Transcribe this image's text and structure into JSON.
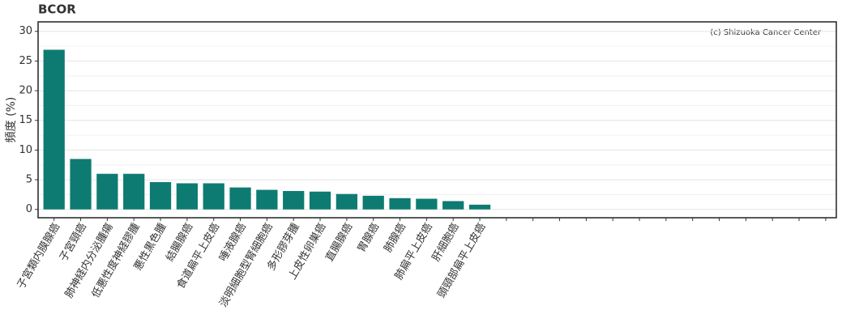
{
  "chart_data": {
    "type": "bar",
    "title": "BCOR",
    "y_label": "頻度 (%)",
    "annotation": "(c) Shizuoka Cancer Center",
    "categories": [
      "子宮類内膜腺癌",
      "子宮頸癌",
      "肺神経内分泌腫瘍",
      "低悪性度神経膠腫",
      "悪性黒色腫",
      "結腸腺癌",
      "食道扁平上皮癌",
      "唾液腺癌",
      "淡明細胞型腎細胞癌",
      "多形膠芽腫",
      "上皮性卵巣癌",
      "直腸腺癌",
      "胃腺癌",
      "肺腺癌",
      "肺扁平上皮癌",
      "肝細胞癌",
      "頭頸部扁平上皮癌",
      null,
      null,
      null,
      null,
      null,
      null,
      null,
      null,
      null,
      null,
      null,
      null,
      null
    ],
    "values": [
      26.9,
      8.5,
      6.0,
      6.0,
      4.6,
      4.4,
      4.4,
      3.7,
      3.3,
      3.1,
      3.0,
      2.6,
      2.3,
      1.9,
      1.8,
      1.4,
      0.8,
      null,
      null,
      null,
      null,
      null,
      null,
      null,
      null,
      null,
      null,
      null,
      null,
      null
    ],
    "color": "#0e7b72",
    "ylim": [
      -1.4,
      31.6
    ],
    "yticks": [
      0,
      5,
      10,
      15,
      20,
      25,
      30
    ],
    "grid": true
  }
}
